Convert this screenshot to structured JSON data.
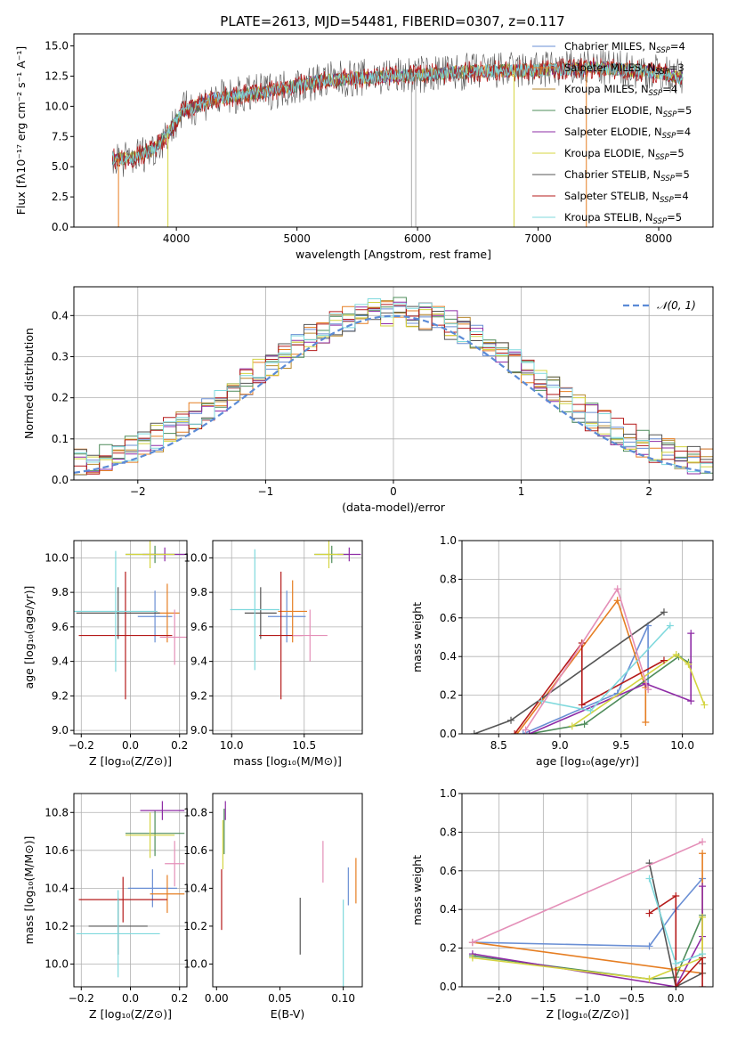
{
  "figure": {
    "title": "PLATE=2613, MJD=54481, FIBERID=0307, z=0.117"
  },
  "chart_data": [
    {
      "id": "spectrum",
      "type": "line",
      "xlabel": "wavelength [Angstrom, rest frame]",
      "ylabel": "Flux [fλ10⁻¹⁷ erg cm⁻² s⁻¹ A⁻¹]",
      "xlim": [
        3150,
        8450
      ],
      "ylim": [
        0,
        16
      ],
      "xticks": [
        4000,
        5000,
        6000,
        7000,
        8000
      ],
      "yticks": [
        0.0,
        2.5,
        5.0,
        7.5,
        10.0,
        12.5,
        15.0
      ],
      "xtick_labels": [
        "4000",
        "5000",
        "6000",
        "7000",
        "8000"
      ],
      "ytick_labels": [
        "0.0",
        "2.5",
        "5.0",
        "7.5",
        "10.0",
        "12.5",
        "15.0"
      ],
      "grid": false,
      "legend_position": "top-right",
      "continuum": {
        "x": [
          3470,
          3600,
          3800,
          3950,
          4050,
          4300,
          4600,
          4900,
          5200,
          5600,
          6000,
          6500,
          7000,
          7500,
          8000,
          8200
        ],
        "y": [
          5.7,
          5.6,
          6.4,
          8.0,
          9.6,
          10.6,
          11.0,
          11.5,
          12.1,
          12.4,
          12.6,
          12.9,
          13.0,
          13.2,
          12.8,
          12.3
        ]
      },
      "series": [
        {
          "name": "Chabrier MILES, N_SSP=4",
          "color": "#6a8fd4"
        },
        {
          "name": "Salpeter MILES, N_SSP=3",
          "color": "#e67e22"
        },
        {
          "name": "Kroupa MILES, N_SSP=4",
          "color": "#b9892f"
        },
        {
          "name": "Chabrier ELODIE, N_SSP=5",
          "color": "#4e8c5a"
        },
        {
          "name": "Salpeter ELODIE, N_SSP=4",
          "color": "#8e2ca6"
        },
        {
          "name": "Kroupa ELODIE, N_SSP=5",
          "color": "#d4d440"
        },
        {
          "name": "Chabrier STELIB, N_SSP=5",
          "color": "#555555"
        },
        {
          "name": "Salpeter STELIB, N_SSP=4",
          "color": "#b51b1b"
        },
        {
          "name": "Kroupa STELIB, N_SSP=5",
          "color": "#7fd9dd"
        }
      ],
      "legend": [
        {
          "label": "Chabrier MILES, N",
          "sub": "SSP",
          "suffix": "=4",
          "color": "#6a8fd4"
        },
        {
          "label": "Salpeter MILES, N",
          "sub": "SSP",
          "suffix": "=3",
          "color": "#e67e22"
        },
        {
          "label": "Kroupa MILES, N",
          "sub": "SSP",
          "suffix": "=4",
          "color": "#b9892f"
        },
        {
          "label": "Chabrier ELODIE, N",
          "sub": "SSP",
          "suffix": "=5",
          "color": "#4e8c5a"
        },
        {
          "label": "Salpeter ELODIE, N",
          "sub": "SSP",
          "suffix": "=4",
          "color": "#8e2ca6"
        },
        {
          "label": "Kroupa ELODIE, N",
          "sub": "SSP",
          "suffix": "=5",
          "color": "#d4d440"
        },
        {
          "label": "Chabrier STELIB, N",
          "sub": "SSP",
          "suffix": "=5",
          "color": "#555555"
        },
        {
          "label": "Salpeter STELIB, N",
          "sub": "SSP",
          "suffix": "=4",
          "color": "#b51b1b"
        },
        {
          "label": "Kroupa STELIB, N",
          "sub": "SSP",
          "suffix": "=5",
          "color": "#7fd9dd"
        }
      ]
    },
    {
      "id": "residuals",
      "type": "histogram",
      "xlabel": "(data-model)/error",
      "ylabel": "Normed distribution",
      "xlim": [
        -2.5,
        2.5
      ],
      "ylim": [
        0,
        0.47
      ],
      "xticks": [
        -2,
        -1,
        0,
        1,
        2
      ],
      "yticks": [
        0.0,
        0.1,
        0.2,
        0.3,
        0.4
      ],
      "xtick_labels": [
        "−2",
        "−1",
        "0",
        "1",
        "2"
      ],
      "ytick_labels": [
        "0.0",
        "0.1",
        "0.2",
        "0.3",
        "0.4"
      ],
      "grid": true,
      "legend_position": "top-right",
      "gaussian": {
        "label": "𝒩(0, 1)",
        "color": "#5b8bd6",
        "mean": 0,
        "sigma": 1
      },
      "bin_width": 0.1
    },
    {
      "id": "age-vs-Z",
      "type": "errorbar",
      "xlabel": "Z [log₁₀(Z/Z⊙)]",
      "ylabel": "age  [log₁₀(age/yr)]",
      "xlim": [
        -0.23,
        0.23
      ],
      "ylim": [
        8.98,
        10.1
      ],
      "xticks": [
        -0.2,
        0.0,
        0.2
      ],
      "yticks": [
        9.0,
        9.2,
        9.4,
        9.6,
        9.8,
        10.0
      ],
      "xtick_labels": [
        "−0.2",
        "0.0",
        "0.2"
      ],
      "ytick_labels": [
        "9.0",
        "9.2",
        "9.4",
        "9.6",
        "9.8",
        "10.0"
      ],
      "grid": true,
      "points": [
        {
          "x": 0.1,
          "y": 9.66,
          "xerr": 0.07,
          "yerr": 0.15,
          "color": "#6a8fd4"
        },
        {
          "x": 0.15,
          "y": 9.68,
          "xerr": 0.05,
          "yerr": 0.17,
          "color": "#e67e22"
        },
        {
          "x": 0.1,
          "y": 10.02,
          "xerr": 0.12,
          "yerr": 0.05,
          "color": "#4e8c5a"
        },
        {
          "x": 0.14,
          "y": 10.02,
          "xerr": 0.09,
          "yerr": 0.04,
          "color": "#8e2ca6"
        },
        {
          "x": 0.08,
          "y": 10.02,
          "xerr": 0.1,
          "yerr": 0.08,
          "color": "#d4d440"
        },
        {
          "x": -0.05,
          "y": 9.68,
          "xerr": 0.17,
          "yerr": 0.15,
          "color": "#555555"
        },
        {
          "x": -0.02,
          "y": 9.55,
          "xerr": 0.19,
          "yerr": 0.37,
          "color": "#b51b1b"
        },
        {
          "x": -0.06,
          "y": 9.69,
          "xerr": 0.17,
          "yerr": 0.35,
          "color": "#7fd9dd"
        },
        {
          "x": 0.18,
          "y": 9.54,
          "xerr": 0.06,
          "yerr": 0.16,
          "color": "#e48fb8"
        }
      ]
    },
    {
      "id": "age-vs-mass",
      "type": "errorbar",
      "xlabel": "mass [log₁₀(M/M⊙)]",
      "ylabel": "",
      "xlim": [
        9.87,
        10.9
      ],
      "ylim": [
        8.98,
        10.1
      ],
      "xticks": [
        10.0,
        10.5
      ],
      "yticks": [
        9.0,
        9.2,
        9.4,
        9.6,
        9.8,
        10.0
      ],
      "xtick_labels": [
        "10.0",
        "10.5"
      ],
      "ytick_labels": [
        "9.0",
        "9.2",
        "9.4",
        "9.6",
        "9.8",
        "10.0"
      ],
      "grid": true,
      "points": [
        {
          "x": 10.38,
          "y": 9.66,
          "xerr": 0.13,
          "yerr": 0.15,
          "color": "#6a8fd4"
        },
        {
          "x": 10.42,
          "y": 9.69,
          "xerr": 0.1,
          "yerr": 0.18,
          "color": "#e67e22"
        },
        {
          "x": 10.69,
          "y": 10.02,
          "xerr": 0.12,
          "yerr": 0.05,
          "color": "#4e8c5a"
        },
        {
          "x": 10.81,
          "y": 10.02,
          "xerr": 0.08,
          "yerr": 0.04,
          "color": "#8e2ca6"
        },
        {
          "x": 10.67,
          "y": 10.02,
          "xerr": 0.1,
          "yerr": 0.08,
          "color": "#d4d440"
        },
        {
          "x": 10.2,
          "y": 9.68,
          "xerr": 0.11,
          "yerr": 0.15,
          "color": "#555555"
        },
        {
          "x": 10.34,
          "y": 9.55,
          "xerr": 0.15,
          "yerr": 0.37,
          "color": "#b51b1b"
        },
        {
          "x": 10.16,
          "y": 9.7,
          "xerr": 0.17,
          "yerr": 0.35,
          "color": "#7fd9dd"
        },
        {
          "x": 10.54,
          "y": 9.55,
          "xerr": 0.12,
          "yerr": 0.15,
          "color": "#e48fb8"
        }
      ]
    },
    {
      "id": "massweight-vs-age",
      "type": "line",
      "xlabel": "age  [log₁₀(age/yr)]",
      "ylabel": "mass weight",
      "xlim": [
        8.2,
        10.25
      ],
      "ylim": [
        0,
        1
      ],
      "xticks": [
        8.5,
        9.0,
        9.5,
        10.0
      ],
      "yticks": [
        0.0,
        0.2,
        0.4,
        0.6,
        0.8,
        1.0
      ],
      "xtick_labels": [
        "8.5",
        "9.0",
        "9.5",
        "10.0"
      ],
      "ytick_labels": [
        "0.0",
        "0.2",
        "0.4",
        "0.6",
        "0.8",
        "1.0"
      ],
      "grid": true,
      "series": [
        {
          "x": [
            8.7,
            9.47,
            9.72,
            9.72
          ],
          "y": [
            0.0,
            0.21,
            0.56,
            0.23
          ],
          "color": "#6a8fd4"
        },
        {
          "x": [
            8.65,
            9.47,
            9.7,
            9.7
          ],
          "y": [
            0.0,
            0.69,
            0.24,
            0.06
          ],
          "color": "#e67e22"
        },
        {
          "x": [
            8.75,
            9.2,
            9.97,
            10.05
          ],
          "y": [
            0.0,
            0.05,
            0.4,
            0.37
          ],
          "color": "#4e8c5a"
        },
        {
          "x": [
            8.75,
            9.7,
            10.07,
            10.07
          ],
          "y": [
            0.0,
            0.26,
            0.17,
            0.52
          ],
          "color": "#8e2ca6"
        },
        {
          "x": [
            9.1,
            9.95,
            10.05,
            10.18
          ],
          "y": [
            0.04,
            0.41,
            0.36,
            0.15
          ],
          "color": "#d4d440"
        },
        {
          "x": [
            8.3,
            8.6,
            9.85
          ],
          "y": [
            0.0,
            0.07,
            0.63
          ],
          "color": "#555555"
        },
        {
          "x": [
            8.63,
            9.18,
            9.18,
            9.85
          ],
          "y": [
            0.0,
            0.47,
            0.15,
            0.38
          ],
          "color": "#b51b1b"
        },
        {
          "x": [
            8.85,
            9.25,
            9.9
          ],
          "y": [
            0.17,
            0.12,
            0.56
          ],
          "color": "#7fd9dd"
        },
        {
          "x": [
            8.72,
            9.47,
            9.72
          ],
          "y": [
            0.02,
            0.75,
            0.23
          ],
          "color": "#e48fb8"
        }
      ]
    },
    {
      "id": "mass-vs-Z",
      "type": "errorbar",
      "xlabel": "Z [log₁₀(Z/Z⊙)]",
      "ylabel": "mass [log₁₀(M/M⊙)]",
      "xlim": [
        -0.23,
        0.23
      ],
      "ylim": [
        9.88,
        10.9
      ],
      "xticks": [
        -0.2,
        0.0,
        0.2
      ],
      "yticks": [
        10.0,
        10.2,
        10.4,
        10.6,
        10.8
      ],
      "xtick_labels": [
        "−0.2",
        "0.0",
        "0.2"
      ],
      "ytick_labels": [
        "10.0",
        "10.2",
        "10.4",
        "10.6",
        "10.8"
      ],
      "grid": true,
      "points": [
        {
          "x": 0.09,
          "y": 10.4,
          "xerr": 0.1,
          "yerr": 0.1,
          "color": "#6a8fd4"
        },
        {
          "x": 0.15,
          "y": 10.37,
          "xerr": 0.07,
          "yerr": 0.1,
          "color": "#e67e22"
        },
        {
          "x": 0.1,
          "y": 10.69,
          "xerr": 0.12,
          "yerr": 0.12,
          "color": "#4e8c5a"
        },
        {
          "x": 0.13,
          "y": 10.81,
          "xerr": 0.09,
          "yerr": 0.05,
          "color": "#8e2ca6"
        },
        {
          "x": 0.08,
          "y": 10.68,
          "xerr": 0.1,
          "yerr": 0.12,
          "color": "#d4d440"
        },
        {
          "x": -0.05,
          "y": 10.2,
          "xerr": 0.12,
          "yerr": 0.15,
          "color": "#555555"
        },
        {
          "x": -0.03,
          "y": 10.34,
          "xerr": 0.18,
          "yerr": 0.12,
          "color": "#b51b1b"
        },
        {
          "x": -0.05,
          "y": 10.16,
          "xerr": 0.17,
          "yerr": 0.23,
          "color": "#7fd9dd"
        },
        {
          "x": 0.18,
          "y": 10.53,
          "xerr": 0.04,
          "yerr": 0.12,
          "color": "#e48fb8"
        }
      ]
    },
    {
      "id": "mass-vs-EBV",
      "type": "errorbar",
      "xlabel": "E(B-V)",
      "ylabel": "",
      "xlim": [
        -0.003,
        0.115
      ],
      "ylim": [
        9.88,
        10.9
      ],
      "xticks": [
        0.0,
        0.05,
        0.1
      ],
      "yticks": [
        10.0,
        10.2,
        10.4,
        10.6,
        10.8
      ],
      "xtick_labels": [
        "0.00",
        "0.05",
        "0.10"
      ],
      "ytick_labels": [
        "10.0",
        "10.2",
        "10.4",
        "10.6",
        "10.8"
      ],
      "grid": false,
      "points": [
        {
          "x": 0.104,
          "y": 10.41,
          "xerr": 0,
          "yerr": 0.1,
          "color": "#6a8fd4"
        },
        {
          "x": 0.11,
          "y": 10.44,
          "xerr": 0,
          "yerr": 0.12,
          "color": "#e67e22"
        },
        {
          "x": 0.006,
          "y": 10.7,
          "xerr": 0,
          "yerr": 0.12,
          "color": "#4e8c5a"
        },
        {
          "x": 0.007,
          "y": 10.81,
          "xerr": 0,
          "yerr": 0.05,
          "color": "#8e2ca6"
        },
        {
          "x": 0.005,
          "y": 10.63,
          "xerr": 0,
          "yerr": 0.13,
          "color": "#d4d440"
        },
        {
          "x": 0.066,
          "y": 10.2,
          "xerr": 0,
          "yerr": 0.15,
          "color": "#555555"
        },
        {
          "x": 0.004,
          "y": 10.34,
          "xerr": 0,
          "yerr": 0.16,
          "color": "#b51b1b"
        },
        {
          "x": 0.1,
          "y": 10.1,
          "xerr": 0,
          "yerr": 0.24,
          "color": "#7fd9dd"
        },
        {
          "x": 0.084,
          "y": 10.54,
          "xerr": 0,
          "yerr": 0.11,
          "color": "#e48fb8"
        }
      ]
    },
    {
      "id": "massweight-vs-Z",
      "type": "line",
      "xlabel": "Z [log₁₀(Z/Z⊙)]",
      "ylabel": "mass weight",
      "xlim": [
        -2.42,
        0.42
      ],
      "ylim": [
        0,
        1
      ],
      "xticks": [
        -2.0,
        -1.5,
        -1.0,
        -0.5,
        0.0
      ],
      "yticks": [
        0.0,
        0.2,
        0.4,
        0.6,
        0.8,
        1.0
      ],
      "xtick_labels": [
        "−2.0",
        "−1.5",
        "−1.0",
        "−0.5",
        "0.0"
      ],
      "ytick_labels": [
        "0.0",
        "0.2",
        "0.4",
        "0.6",
        "0.8",
        "1.0"
      ],
      "grid": true,
      "series": [
        {
          "x": [
            -2.3,
            -0.3,
            0.0,
            0.3
          ],
          "y": [
            0.23,
            0.21,
            0.4,
            0.56
          ],
          "color": "#6a8fd4"
        },
        {
          "x": [
            -2.3,
            0.3,
            0.3
          ],
          "y": [
            0.23,
            0.07,
            0.69
          ],
          "color": "#e67e22"
        },
        {
          "x": [
            -2.3,
            -0.3,
            0.0,
            0.3
          ],
          "y": [
            0.16,
            0.04,
            0.05,
            0.37
          ],
          "color": "#4e8c5a"
        },
        {
          "x": [
            -2.3,
            0.0,
            0.3,
            0.3
          ],
          "y": [
            0.17,
            0.0,
            0.26,
            0.52
          ],
          "color": "#8e2ca6"
        },
        {
          "x": [
            -2.3,
            -0.3,
            0.3,
            0.3
          ],
          "y": [
            0.15,
            0.04,
            0.15,
            0.36
          ],
          "color": "#d4d440"
        },
        {
          "x": [
            -0.3,
            0.0,
            0.3,
            0.3
          ],
          "y": [
            0.64,
            0.0,
            0.07,
            0.12
          ],
          "color": "#555555"
        },
        {
          "x": [
            -0.3,
            0.0,
            0.0,
            0.3,
            0.3
          ],
          "y": [
            0.38,
            0.47,
            0.0,
            0.15,
            0.0
          ],
          "color": "#b51b1b"
        },
        {
          "x": [
            -0.3,
            0.0,
            0.3
          ],
          "y": [
            0.56,
            0.12,
            0.17
          ],
          "color": "#7fd9dd"
        },
        {
          "x": [
            -2.3,
            0.3
          ],
          "y": [
            0.23,
            0.75
          ],
          "color": "#e48fb8"
        }
      ]
    }
  ]
}
